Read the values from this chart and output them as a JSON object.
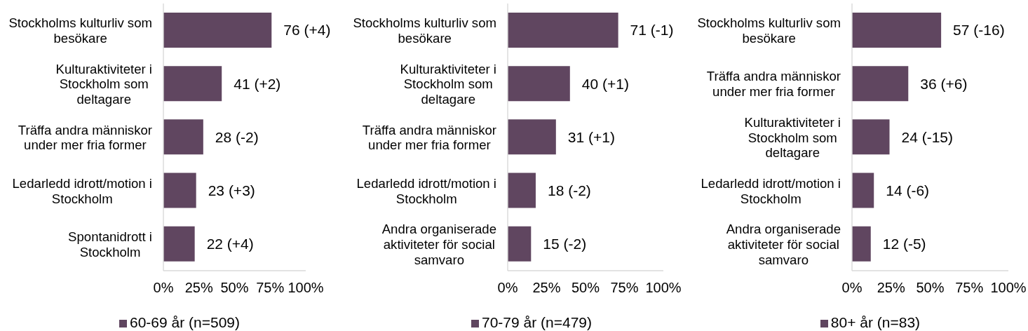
{
  "chart_data": [
    {
      "type": "bar",
      "orientation": "horizontal",
      "categories": [
        "Stockholms kulturliv som besökare",
        "Kulturaktiviteter i Stockholm som deltagare",
        "Träffa andra människor under mer fria former",
        "Ledarledd idrott/motion i Stockholm",
        "Spontanidrott i Stockholm"
      ],
      "series": [
        {
          "name": "60-69 år (n=509)",
          "color": "#604660",
          "values": [
            76,
            41,
            28,
            23,
            22
          ],
          "value_labels": [
            "76 (+4)",
            "41 (+2)",
            "28 (-2)",
            "23 (+3)",
            "22 (+4)"
          ]
        }
      ],
      "xlim": [
        0,
        100
      ],
      "xticks": [
        {
          "value": 0,
          "label": "0%"
        },
        {
          "value": 25,
          "label": "25%"
        },
        {
          "value": 50,
          "label": "50%"
        },
        {
          "value": 75,
          "label": "75%"
        },
        {
          "value": 100,
          "label": "100%"
        }
      ],
      "legend": "bottom"
    },
    {
      "type": "bar",
      "orientation": "horizontal",
      "categories": [
        "Stockholms kulturliv som besökare",
        "Kulturaktiviteter i Stockholm som deltagare",
        "Träffa andra människor under mer fria former",
        "Ledarledd idrott/motion i Stockholm",
        "Andra organiserade aktiviteter för social samvaro"
      ],
      "series": [
        {
          "name": "70-79 år (n=479)",
          "color": "#604660",
          "values": [
            71,
            40,
            31,
            18,
            15
          ],
          "value_labels": [
            "71 (-1)",
            "40 (+1)",
            "31 (+1)",
            "18 (-2)",
            "15 (-2)"
          ]
        }
      ],
      "xlim": [
        0,
        100
      ],
      "xticks": [
        {
          "value": 0,
          "label": "0%"
        },
        {
          "value": 25,
          "label": "25%"
        },
        {
          "value": 50,
          "label": "50%"
        },
        {
          "value": 75,
          "label": "75%"
        },
        {
          "value": 100,
          "label": "100%"
        }
      ],
      "legend": "bottom"
    },
    {
      "type": "bar",
      "orientation": "horizontal",
      "categories": [
        "Stockholms kulturliv som besökare",
        "Träffa andra människor under mer fria former",
        "Kulturaktiviteter i Stockholm som deltagare",
        "Ledarledd idrott/motion i Stockholm",
        "Andra organiserade aktiviteter för social samvaro"
      ],
      "series": [
        {
          "name": "80+ år (n=83)",
          "color": "#604660",
          "values": [
            57,
            36,
            24,
            14,
            12
          ],
          "value_labels": [
            "57 (-16)",
            "36 (+6)",
            "24 (-15)",
            "14 (-6)",
            "12 (-5)"
          ]
        }
      ],
      "xlim": [
        0,
        100
      ],
      "xticks": [
        {
          "value": 0,
          "label": "0%"
        },
        {
          "value": 25,
          "label": "25%"
        },
        {
          "value": 50,
          "label": "50%"
        },
        {
          "value": 75,
          "label": "75%"
        },
        {
          "value": 100,
          "label": "100%"
        }
      ],
      "legend": "bottom"
    }
  ]
}
